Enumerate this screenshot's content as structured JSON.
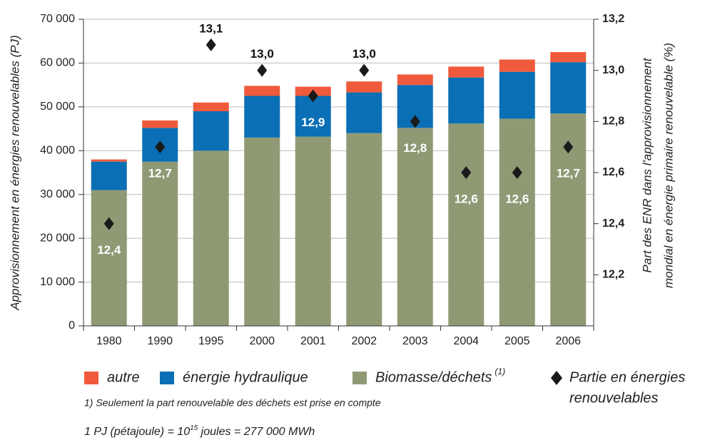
{
  "chart_data": {
    "type": "bar",
    "stacked": true,
    "categories": [
      "1980",
      "1990",
      "1995",
      "2000",
      "2001",
      "2002",
      "2003",
      "2004",
      "2005",
      "2006"
    ],
    "series": [
      {
        "name": "autre",
        "color": "#f05a3c",
        "values": [
          500,
          1700,
          2000,
          2300,
          2100,
          2500,
          2400,
          2500,
          2800,
          2300
        ]
      },
      {
        "name": "énergie hydraulique",
        "color": "#0a6fb5",
        "values": [
          6500,
          7700,
          9000,
          9500,
          9300,
          9300,
          9800,
          10500,
          10700,
          11700
        ]
      },
      {
        "name": "Biomasse/déchets",
        "name_note": "(1)",
        "color": "#8f9a75",
        "values": [
          31000,
          37500,
          40000,
          43000,
          43200,
          44000,
          45200,
          46200,
          47300,
          48500
        ]
      },
      {
        "name": [
          "Partie en énergies",
          "renouvelables"
        ],
        "type": "scatter",
        "axis": "y2",
        "color": "#1a1a1a",
        "values": [
          12.4,
          12.7,
          13.1,
          13.0,
          12.9,
          13.0,
          12.8,
          12.6,
          12.6,
          12.7
        ],
        "value_labels": [
          "12,4",
          "12,7",
          "13,1",
          "13,0",
          "12,9",
          "13,0",
          "12,8",
          "12,6",
          "12,6",
          "12,7"
        ]
      }
    ],
    "ylabel": "Approvisionnement en énergies renouvelables (PJ)",
    "y2label": [
      "Part des ENR dans l'approvisionnement",
      "mondial en énergie primaire renouvelable (%)"
    ],
    "ylim": [
      0,
      70000
    ],
    "yticks": [
      0,
      {
        "value": 10000,
        "label": "10 000"
      },
      {
        "value": 20000,
        "label": "20 000"
      },
      {
        "value": 30000,
        "label": "30 000"
      },
      {
        "value": 40000,
        "label": "40 000"
      },
      {
        "value": 50000,
        "label": "50 000"
      },
      {
        "value": 60000,
        "label": "60 000"
      },
      {
        "value": 70000,
        "label": "70 000"
      }
    ],
    "y2lim": [
      12.0,
      13.2
    ],
    "y2ticks": [
      {
        "value": 12.2,
        "label": "12,2"
      },
      {
        "value": 12.4,
        "label": "12,4"
      },
      {
        "value": 12.6,
        "label": "12,6"
      },
      {
        "value": 12.8,
        "label": "12,8"
      },
      {
        "value": 13.0,
        "label": "13,0"
      },
      {
        "value": 13.2,
        "label": "13,2"
      }
    ],
    "grid": true,
    "footnote": "1) Seulement la part renouvelable des déchets est prise en compte",
    "unit_note": [
      "1 PJ (pétajoule) = 10",
      "15",
      " joules = 277 000 MWh"
    ]
  }
}
